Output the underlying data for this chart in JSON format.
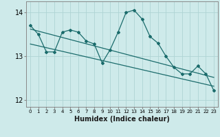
{
  "x": [
    0,
    1,
    2,
    3,
    4,
    5,
    6,
    7,
    8,
    9,
    10,
    11,
    12,
    13,
    14,
    15,
    16,
    17,
    18,
    19,
    20,
    21,
    22,
    23
  ],
  "y_main": [
    13.7,
    13.5,
    13.1,
    13.1,
    13.55,
    13.6,
    13.55,
    13.35,
    13.28,
    12.85,
    13.15,
    13.55,
    14.0,
    14.05,
    13.85,
    13.45,
    13.3,
    13.0,
    12.75,
    12.6,
    12.6,
    12.78,
    12.6,
    12.22
  ],
  "trend1_x": [
    0,
    23
  ],
  "trend1_y": [
    13.62,
    12.52
  ],
  "trend2_x": [
    0,
    23
  ],
  "trend2_y": [
    13.28,
    12.32
  ],
  "background_color": "#ceeaea",
  "grid_color": "#aed4d4",
  "line_color": "#1a6b6b",
  "xlabel": "Humidex (Indice chaleur)",
  "ylim": [
    11.85,
    14.25
  ],
  "xlim": [
    -0.5,
    23.5
  ],
  "yticks": [
    12,
    13,
    14
  ],
  "ytick_labels": [
    "12",
    "13",
    "14"
  ],
  "xtick_labels": [
    "0",
    "1",
    "2",
    "3",
    "4",
    "5",
    "6",
    "7",
    "8",
    "9",
    "10",
    "11",
    "12",
    "13",
    "14",
    "15",
    "16",
    "17",
    "18",
    "19",
    "20",
    "21",
    "22",
    "23"
  ],
  "xlabel_fontsize": 7,
  "ytick_fontsize": 7,
  "xtick_fontsize": 5
}
